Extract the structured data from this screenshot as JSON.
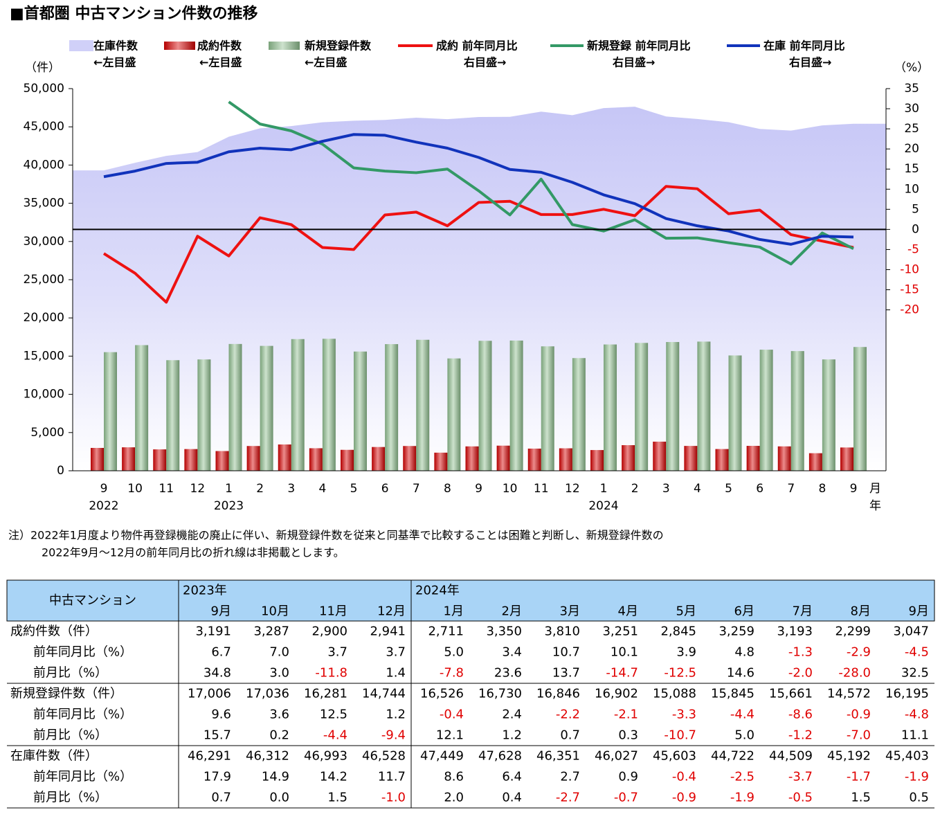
{
  "chart_data": {
    "type": "combo",
    "title": "■首都圏 中古マンション件数の推移",
    "y_label": "（件）",
    "y2_label": "（%）",
    "x_unit": "月",
    "x_year_unit": "年",
    "categories": [
      "9",
      "10",
      "11",
      "12",
      "1",
      "2",
      "3",
      "4",
      "5",
      "6",
      "7",
      "8",
      "9",
      "10",
      "11",
      "12",
      "1",
      "2",
      "3",
      "4",
      "5",
      "6",
      "7",
      "8",
      "9"
    ],
    "category_years": [
      "2022",
      null,
      null,
      null,
      "2023",
      null,
      null,
      null,
      null,
      null,
      null,
      null,
      null,
      null,
      null,
      null,
      "2024",
      null,
      null,
      null,
      null,
      null,
      null,
      null,
      null
    ],
    "ylim": [
      0,
      50000
    ],
    "yticks": [
      0,
      {
        "value": 5000,
        "label": "5,000"
      },
      {
        "value": 10000,
        "label": "10,000"
      },
      {
        "value": 15000,
        "label": "15,000"
      },
      {
        "value": 20000,
        "label": "20,000"
      },
      {
        "value": 25000,
        "label": "25,000"
      },
      {
        "value": 30000,
        "label": "30,000"
      },
      {
        "value": 35000,
        "label": "35,000"
      },
      {
        "value": 40000,
        "label": "40,000"
      },
      {
        "value": 45000,
        "label": "45,000"
      },
      {
        "value": 50000,
        "label": "50,000"
      }
    ],
    "y2lim": [
      -60,
      35
    ],
    "y2ticks": [
      -20,
      -15,
      -10,
      -5,
      0,
      5,
      10,
      15,
      20,
      25,
      30,
      35
    ],
    "zero_line": true,
    "series": [
      {
        "name": "在庫件数",
        "legend_note": "←左目盛",
        "kind": "area",
        "color": "#c4c4f6",
        "values": [
          39300,
          40300,
          41200,
          41700,
          43700,
          44800,
          45100,
          45600,
          45800,
          45900,
          46200,
          46000,
          46291,
          46312,
          46993,
          46528,
          47449,
          47628,
          46351,
          46027,
          45603,
          44722,
          44509,
          45192,
          45403
        ]
      },
      {
        "name": "成約件数",
        "legend_note": "←左目盛",
        "kind": "bar",
        "color": "#d40000",
        "values": [
          2990,
          3070,
          2800,
          2840,
          2580,
          3240,
          3440,
          2950,
          2740,
          3110,
          3240,
          2370,
          3191,
          3287,
          2900,
          2941,
          2711,
          3350,
          3810,
          3251,
          2845,
          3259,
          3193,
          2299,
          3047
        ]
      },
      {
        "name": "新規登録件数",
        "legend_note": "←左目盛",
        "kind": "bar",
        "color": "#8fbf8f",
        "values": [
          15520,
          16440,
          14470,
          14570,
          16590,
          16340,
          17230,
          17270,
          15600,
          16570,
          17140,
          14700,
          17006,
          17036,
          16281,
          14744,
          16526,
          16730,
          16846,
          16902,
          15088,
          15845,
          15661,
          14572,
          16195
        ]
      },
      {
        "name": "成約 前年同月比",
        "legend_note": "右目盛→",
        "kind": "line",
        "axis": "y2",
        "color": "#ee1111",
        "values": [
          -6.0,
          -10.9,
          -18.1,
          -1.7,
          -6.6,
          2.9,
          1.2,
          -4.5,
          -5.0,
          3.6,
          4.3,
          0.9,
          6.7,
          7.0,
          3.7,
          3.7,
          5.0,
          3.4,
          10.7,
          10.1,
          3.9,
          4.8,
          -1.3,
          -2.9,
          -4.5
        ]
      },
      {
        "name": "新規登録 前年同月比",
        "legend_note": "右目盛→",
        "kind": "line",
        "axis": "y2",
        "color": "#339966",
        "values": [
          null,
          null,
          null,
          null,
          31.7,
          26.2,
          24.5,
          21.2,
          15.3,
          14.5,
          14.1,
          15.0,
          9.6,
          3.6,
          12.5,
          1.2,
          -0.4,
          2.4,
          -2.2,
          -2.1,
          -3.3,
          -4.4,
          -8.6,
          -0.9,
          -4.8
        ]
      },
      {
        "name": "在庫 前年同月比",
        "legend_note": "右目盛→",
        "kind": "line",
        "axis": "y2",
        "color": "#1133bb",
        "values": [
          13.1,
          14.5,
          16.4,
          16.7,
          19.3,
          20.2,
          19.8,
          21.9,
          23.6,
          23.4,
          21.7,
          20.2,
          17.9,
          14.9,
          14.2,
          11.7,
          8.6,
          6.4,
          2.7,
          0.9,
          -0.4,
          -2.5,
          -3.7,
          -1.7,
          -1.9
        ]
      }
    ],
    "note": [
      "注）2022年1月度より物件再登録機能の廃止に伴い、新規登録件数を従来と同基準で比較することは困難と判断し、新規登録件数の",
      "2022年9月～12月の前年同月比の折れ線は非掲載とします。"
    ]
  },
  "table": {
    "corner": "中古マンション",
    "header_years": [
      "2023年",
      null,
      null,
      null,
      "2024年",
      null,
      null,
      null,
      null,
      null,
      null,
      null,
      null
    ],
    "header_months": [
      "9月",
      "10月",
      "11月",
      "12月",
      "1月",
      "2月",
      "3月",
      "4月",
      "5月",
      "6月",
      "7月",
      "8月",
      "9月"
    ],
    "rows": [
      {
        "label": "成約件数（件）",
        "cells": [
          "3,191",
          "3,287",
          "2,900",
          "2,941",
          "2,711",
          "3,350",
          "3,810",
          "3,251",
          "2,845",
          "3,259",
          "3,193",
          "2,299",
          "3,047"
        ]
      },
      {
        "label": "前年同月比（%）",
        "cells": [
          "6.7",
          "7.0",
          "3.7",
          "3.7",
          "5.0",
          "3.4",
          "10.7",
          "10.1",
          "3.9",
          "4.8",
          "-1.3",
          "-2.9",
          "-4.5"
        ]
      },
      {
        "label": "前月比（%）",
        "cells": [
          "34.8",
          "3.0",
          "-11.8",
          "1.4",
          "-7.8",
          "23.6",
          "13.7",
          "-14.7",
          "-12.5",
          "14.6",
          "-2.0",
          "-28.0",
          "32.5"
        ]
      },
      {
        "label": "新規登録件数（件）",
        "cells": [
          "17,006",
          "17,036",
          "16,281",
          "14,744",
          "16,526",
          "16,730",
          "16,846",
          "16,902",
          "15,088",
          "15,845",
          "15,661",
          "14,572",
          "16,195"
        ]
      },
      {
        "label": "前年同月比（%）",
        "cells": [
          "9.6",
          "3.6",
          "12.5",
          "1.2",
          "-0.4",
          "2.4",
          "-2.2",
          "-2.1",
          "-3.3",
          "-4.4",
          "-8.6",
          "-0.9",
          "-4.8"
        ]
      },
      {
        "label": "前月比（%）",
        "cells": [
          "15.7",
          "0.2",
          "-4.4",
          "-9.4",
          "12.1",
          "1.2",
          "0.7",
          "0.3",
          "-10.7",
          "5.0",
          "-1.2",
          "-7.0",
          "11.1"
        ]
      },
      {
        "label": "在庫件数（件）",
        "cells": [
          "46,291",
          "46,312",
          "46,993",
          "46,528",
          "47,449",
          "47,628",
          "46,351",
          "46,027",
          "45,603",
          "44,722",
          "44,509",
          "45,192",
          "45,403"
        ]
      },
      {
        "label": "前年同月比（%）",
        "cells": [
          "17.9",
          "14.9",
          "14.2",
          "11.7",
          "8.6",
          "6.4",
          "2.7",
          "0.9",
          "-0.4",
          "-2.5",
          "-3.7",
          "-1.7",
          "-1.9"
        ]
      },
      {
        "label": "前月比（%）",
        "cells": [
          "0.7",
          "0.0",
          "1.5",
          "-1.0",
          "2.0",
          "0.4",
          "-2.7",
          "-0.7",
          "-0.9",
          "-1.9",
          "-0.5",
          "1.5",
          "0.5"
        ]
      }
    ]
  }
}
